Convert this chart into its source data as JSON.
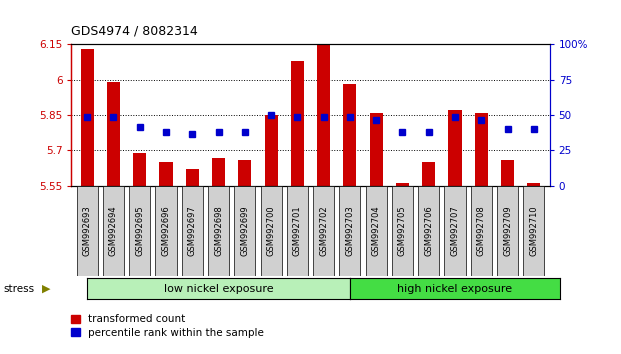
{
  "title": "GDS4974 / 8082314",
  "samples": [
    "GSM992693",
    "GSM992694",
    "GSM992695",
    "GSM992696",
    "GSM992697",
    "GSM992698",
    "GSM992699",
    "GSM992700",
    "GSM992701",
    "GSM992702",
    "GSM992703",
    "GSM992704",
    "GSM992705",
    "GSM992706",
    "GSM992707",
    "GSM992708",
    "GSM992709",
    "GSM992710"
  ],
  "red_values": [
    6.13,
    5.99,
    5.69,
    5.65,
    5.62,
    5.67,
    5.66,
    5.85,
    6.08,
    6.15,
    5.98,
    5.86,
    5.56,
    5.65,
    5.87,
    5.86,
    5.66,
    5.56
  ],
  "blue_values": [
    5.84,
    5.84,
    5.8,
    5.78,
    5.77,
    5.78,
    5.78,
    5.85,
    5.84,
    5.84,
    5.84,
    5.83,
    5.78,
    5.78,
    5.84,
    5.83,
    5.79,
    5.79
  ],
  "ymin": 5.55,
  "ymax": 6.15,
  "yticks": [
    5.55,
    5.7,
    5.85,
    6.0,
    6.15
  ],
  "ytick_labels": [
    "5.55",
    "5.7",
    "5.85",
    "6",
    "6.15"
  ],
  "right_yticks_pct": [
    0,
    25,
    50,
    75,
    100
  ],
  "right_ytick_labels": [
    "0",
    "25",
    "50",
    "75",
    "100%"
  ],
  "group1_label": "low nickel exposure",
  "group1_count": 10,
  "group2_label": "high nickel exposure",
  "group2_count": 8,
  "group_label_prefix": "stress",
  "legend1": "transformed count",
  "legend2": "percentile rank within the sample",
  "bar_color": "#cc0000",
  "dot_color": "#0000cc",
  "group1_color": "#b8f0b8",
  "group2_color": "#44dd44",
  "bar_width": 0.5,
  "bar_bottom": 5.55,
  "n_samples": 18
}
